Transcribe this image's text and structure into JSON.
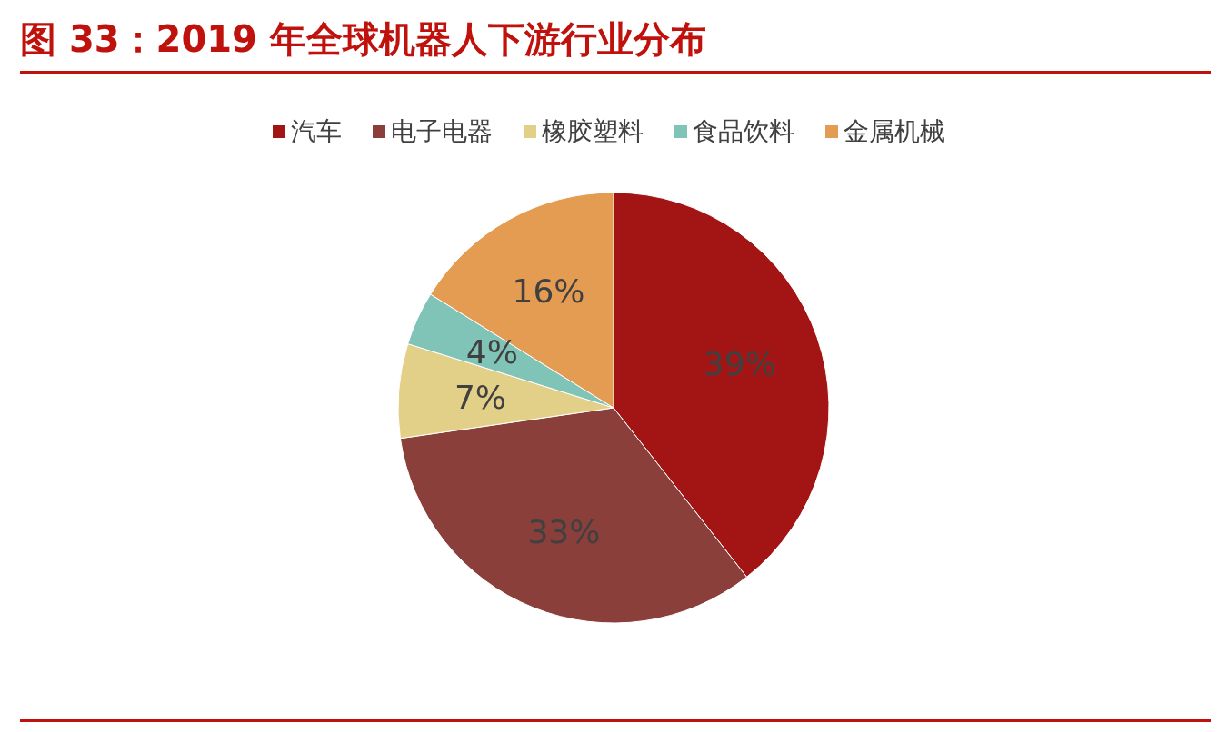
{
  "chart_data": {
    "type": "pie",
    "title": "图 33：2019 年全球机器人下游行业分布",
    "categories": [
      "汽车",
      "电子电器",
      "橡胶塑料",
      "食品饮料",
      "金属机械"
    ],
    "values": [
      39,
      33,
      7,
      4,
      16
    ],
    "colors": [
      "#a31515",
      "#8b3f3a",
      "#e2cf88",
      "#80c4b7",
      "#e39c52"
    ],
    "value_labels": [
      "39%",
      "33%",
      "7%",
      "4%",
      "16%"
    ],
    "legend": "top"
  }
}
